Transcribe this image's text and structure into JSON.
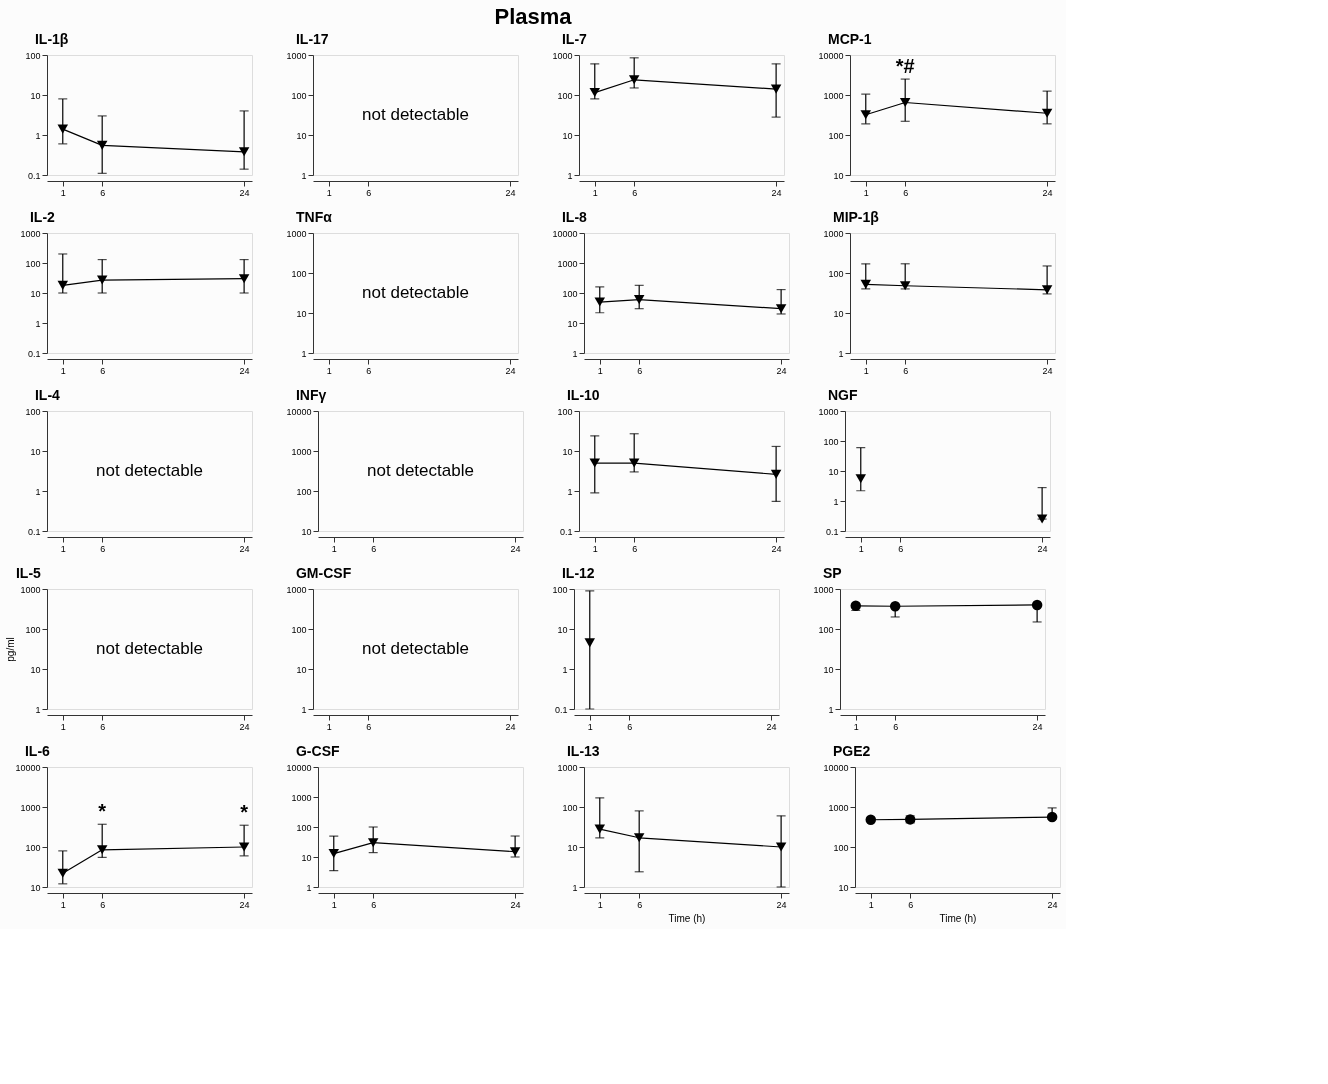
{
  "chart_data": [
    {
      "type": "other",
      "title": "Plasma"
    },
    {
      "type": "line",
      "title": "IL-1β",
      "x": [
        1,
        6,
        24
      ],
      "xlim": [
        -1,
        25
      ],
      "xticks": [
        1,
        6,
        24
      ],
      "ylim": [
        0.1,
        100
      ],
      "yticks": [
        0.1,
        1,
        10,
        100
      ],
      "log": true,
      "grid": false,
      "marker": "triangle",
      "series": [
        {
          "color": "#000000",
          "values": [
            1.4,
            0.55,
            0.38
          ],
          "errors": [
            [
              0.6,
              8
            ],
            [
              0.11,
              3
            ],
            [
              0.14,
              4
            ]
          ]
        }
      ]
    },
    {
      "type": "line",
      "title": "IL-17",
      "xlim": [
        -1,
        25
      ],
      "xticks": [
        1,
        6,
        24
      ],
      "ylim": [
        1,
        1000
      ],
      "yticks": [
        1,
        10,
        100,
        1000
      ],
      "log": true,
      "grid": false,
      "annotations": [
        "not detectable"
      ]
    },
    {
      "type": "line",
      "title": "IL-7",
      "x": [
        1,
        6,
        24
      ],
      "xlim": [
        -1,
        25
      ],
      "xticks": [
        1,
        6,
        24
      ],
      "ylim": [
        1,
        1000
      ],
      "yticks": [
        1,
        10,
        100,
        1000
      ],
      "log": true,
      "grid": false,
      "marker": "triangle",
      "series": [
        {
          "color": "#000000",
          "values": [
            115,
            240,
            140
          ],
          "errors": [
            [
              80,
              600
            ],
            [
              150,
              850
            ],
            [
              28,
              600
            ]
          ]
        }
      ]
    },
    {
      "type": "line",
      "title": "MCP-1",
      "x": [
        1,
        6,
        24
      ],
      "xlim": [
        -1,
        25
      ],
      "xticks": [
        1,
        6,
        24
      ],
      "ylim": [
        10,
        10000
      ],
      "yticks": [
        10,
        100,
        1000,
        10000
      ],
      "log": true,
      "grid": false,
      "marker": "triangle",
      "annotations": [
        "*#"
      ],
      "series": [
        {
          "color": "#000000",
          "values": [
            320,
            650,
            350
          ],
          "errors": [
            [
              190,
              1050
            ],
            [
              220,
              2500
            ],
            [
              190,
              1250
            ]
          ]
        }
      ]
    },
    {
      "type": "line",
      "title": "IL-2",
      "x": [
        1,
        6,
        24
      ],
      "xlim": [
        -1,
        25
      ],
      "xticks": [
        1,
        6,
        24
      ],
      "ylim": [
        0.1,
        1000
      ],
      "yticks": [
        0.1,
        1,
        10,
        100,
        1000
      ],
      "log": true,
      "grid": false,
      "marker": "triangle",
      "series": [
        {
          "color": "#000000",
          "values": [
            18,
            27,
            30
          ],
          "errors": [
            [
              10,
              200
            ],
            [
              10,
              130
            ],
            [
              10,
              130
            ]
          ]
        }
      ]
    },
    {
      "type": "line",
      "title": "TNFα",
      "xlim": [
        -1,
        25
      ],
      "xticks": [
        1,
        6,
        24
      ],
      "ylim": [
        1,
        1000
      ],
      "yticks": [
        1,
        10,
        100,
        1000
      ],
      "log": true,
      "grid": false,
      "annotations": [
        "not detectable"
      ]
    },
    {
      "type": "line",
      "title": "IL-8",
      "x": [
        1,
        6,
        24
      ],
      "xlim": [
        -1,
        25
      ],
      "xticks": [
        1,
        6,
        24
      ],
      "ylim": [
        1,
        10000
      ],
      "yticks": [
        1,
        10,
        100,
        1000,
        10000
      ],
      "log": true,
      "grid": false,
      "marker": "triangle",
      "series": [
        {
          "color": "#000000",
          "values": [
            50,
            60,
            30
          ],
          "errors": [
            [
              22,
              160
            ],
            [
              30,
              180
            ],
            [
              20,
              130
            ]
          ]
        }
      ]
    },
    {
      "type": "line",
      "title": "MIP-1β",
      "x": [
        1,
        6,
        24
      ],
      "xlim": [
        -1,
        25
      ],
      "xticks": [
        1,
        6,
        24
      ],
      "ylim": [
        1,
        1000
      ],
      "yticks": [
        1,
        10,
        100,
        1000
      ],
      "log": true,
      "grid": false,
      "marker": "triangle",
      "series": [
        {
          "color": "#000000",
          "values": [
            52,
            48,
            38
          ],
          "errors": [
            [
              40,
              170
            ],
            [
              40,
              170
            ],
            [
              30,
              150
            ]
          ]
        }
      ]
    },
    {
      "type": "line",
      "title": "IL-4",
      "xlim": [
        -1,
        25
      ],
      "xticks": [
        1,
        6,
        24
      ],
      "ylim": [
        0.1,
        100
      ],
      "yticks": [
        0.1,
        1,
        10,
        100
      ],
      "log": true,
      "grid": false,
      "annotations": [
        "not detectable"
      ]
    },
    {
      "type": "line",
      "title": "INFγ",
      "xlim": [
        -1,
        25
      ],
      "xticks": [
        1,
        6,
        24
      ],
      "ylim": [
        10,
        10000
      ],
      "yticks": [
        10,
        100,
        1000,
        10000
      ],
      "log": true,
      "grid": false,
      "annotations": [
        "not detectable"
      ]
    },
    {
      "type": "line",
      "title": "IL-10",
      "x": [
        1,
        6,
        24
      ],
      "xlim": [
        -1,
        25
      ],
      "xticks": [
        1,
        6,
        24
      ],
      "ylim": [
        0.1,
        100
      ],
      "yticks": [
        0.1,
        1,
        10,
        100
      ],
      "log": true,
      "grid": false,
      "marker": "triangle",
      "series": [
        {
          "color": "#000000",
          "values": [
            5,
            5,
            2.6
          ],
          "errors": [
            [
              0.9,
              24
            ],
            [
              3,
              27
            ],
            [
              0.55,
              13
            ]
          ]
        }
      ]
    },
    {
      "type": "line",
      "title": "NGF",
      "x": [
        1,
        6,
        24
      ],
      "xlim": [
        -1,
        25
      ],
      "xticks": [
        1,
        6,
        24
      ],
      "ylim": [
        0.1,
        1000
      ],
      "yticks": [
        0.1,
        1,
        10,
        100,
        1000
      ],
      "log": true,
      "grid": false,
      "marker": "triangle",
      "series": [
        {
          "color": "#000000",
          "values": [
            5.5,
            null,
            0.25
          ],
          "errors": [
            [
              2.2,
              60
            ],
            null,
            [
              0.25,
              2.8
            ]
          ]
        }
      ]
    },
    {
      "type": "line",
      "title": "IL-5",
      "ylabel": "pg/ml",
      "xlim": [
        -1,
        25
      ],
      "xticks": [
        1,
        6,
        24
      ],
      "ylim": [
        1,
        1000
      ],
      "yticks": [
        1,
        10,
        100,
        1000
      ],
      "log": true,
      "grid": false,
      "annotations": [
        "not detectable"
      ]
    },
    {
      "type": "line",
      "title": "GM-CSF",
      "xlim": [
        -1,
        25
      ],
      "xticks": [
        1,
        6,
        24
      ],
      "ylim": [
        1,
        1000
      ],
      "yticks": [
        1,
        10,
        100,
        1000
      ],
      "log": true,
      "grid": false,
      "annotations": [
        "not detectable"
      ]
    },
    {
      "type": "line",
      "title": "IL-12",
      "x": [
        1
      ],
      "xlim": [
        -1,
        25
      ],
      "xticks": [
        1,
        6,
        24
      ],
      "ylim": [
        0.1,
        100
      ],
      "yticks": [
        0.1,
        1,
        10,
        100
      ],
      "log": true,
      "grid": false,
      "marker": "triangle",
      "series": [
        {
          "color": "#000000",
          "values": [
            4.5
          ],
          "errors": [
            [
              0.1,
              90
            ]
          ]
        }
      ]
    },
    {
      "type": "line",
      "title": "SP",
      "x": [
        1,
        6,
        24
      ],
      "xlim": [
        -1,
        25
      ],
      "xticks": [
        1,
        6,
        24
      ],
      "ylim": [
        1,
        1000
      ],
      "yticks": [
        1,
        10,
        100,
        1000
      ],
      "log": true,
      "grid": false,
      "marker": "circle",
      "series": [
        {
          "color": "#000000",
          "values": [
            380,
            370,
            400
          ],
          "errors": [
            [
              290,
              380
            ],
            [
              200,
              370
            ],
            [
              150,
              400
            ]
          ]
        }
      ]
    },
    {
      "type": "line",
      "title": "IL-6",
      "x": [
        1,
        6,
        24
      ],
      "xlim": [
        -1,
        25
      ],
      "xticks": [
        1,
        6,
        24
      ],
      "ylim": [
        10,
        10000
      ],
      "yticks": [
        10,
        100,
        1000,
        10000
      ],
      "log": true,
      "grid": false,
      "marker": "triangle",
      "annotations": [
        "*",
        "*"
      ],
      "series": [
        {
          "color": "#000000",
          "values": [
            22,
            85,
            100
          ],
          "errors": [
            [
              12,
              80
            ],
            [
              55,
              370
            ],
            [
              60,
              350
            ]
          ]
        }
      ]
    },
    {
      "type": "line",
      "title": "G-CSF",
      "x": [
        1,
        6,
        24
      ],
      "xlim": [
        -1,
        25
      ],
      "xticks": [
        1,
        6,
        24
      ],
      "ylim": [
        1,
        10000
      ],
      "yticks": [
        1,
        10,
        100,
        1000,
        10000
      ],
      "log": true,
      "grid": false,
      "marker": "triangle",
      "series": [
        {
          "color": "#000000",
          "values": [
            13,
            30,
            15
          ],
          "errors": [
            [
              3.5,
              50
            ],
            [
              14,
              100
            ],
            [
              10,
              50
            ]
          ]
        }
      ]
    },
    {
      "type": "line",
      "title": "IL-13",
      "xlabel": "Time (h)",
      "x": [
        1,
        6,
        24
      ],
      "xlim": [
        -1,
        25
      ],
      "xticks": [
        1,
        6,
        24
      ],
      "ylim": [
        1,
        1000
      ],
      "yticks": [
        1,
        10,
        100,
        1000
      ],
      "log": true,
      "grid": false,
      "marker": "triangle",
      "series": [
        {
          "color": "#000000",
          "values": [
            28,
            17,
            10
          ],
          "errors": [
            [
              17,
              170
            ],
            [
              2.4,
              80
            ],
            [
              1,
              60
            ]
          ]
        }
      ]
    },
    {
      "type": "line",
      "title": "PGE2",
      "xlabel": "Time (h)",
      "x": [
        1,
        6,
        24
      ],
      "xlim": [
        -1,
        25
      ],
      "xticks": [
        1,
        6,
        24
      ],
      "ylim": [
        10,
        10000
      ],
      "yticks": [
        10,
        100,
        1000,
        10000
      ],
      "log": true,
      "grid": false,
      "marker": "circle",
      "series": [
        {
          "color": "#000000",
          "values": [
            480,
            490,
            560
          ],
          "errors": [
            [
              450,
              520
            ],
            [
              400,
              600
            ],
            [
              500,
              950
            ]
          ]
        }
      ]
    }
  ]
}
